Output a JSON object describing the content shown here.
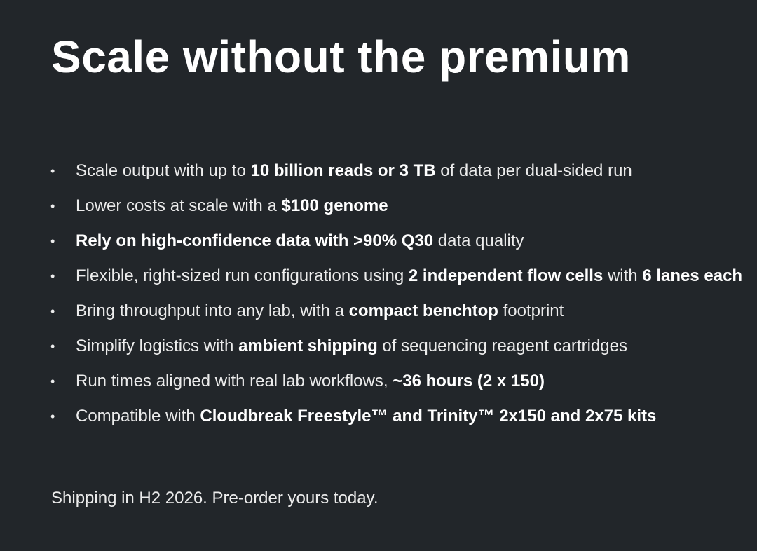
{
  "title": "Scale without the premium",
  "bullets": [
    [
      {
        "t": "Scale output with up to ",
        "b": false
      },
      {
        "t": "10 billion reads or 3 TB",
        "b": true
      },
      {
        "t": " of data per dual-sided run",
        "b": false
      }
    ],
    [
      {
        "t": "Lower costs at scale with a ",
        "b": false
      },
      {
        "t": "$100 genome",
        "b": true
      }
    ],
    [
      {
        "t": "Rely on high-confidence data with >90% Q30",
        "b": true
      },
      {
        "t": " data quality",
        "b": false
      }
    ],
    [
      {
        "t": "Flexible, right-sized run configurations using ",
        "b": false
      },
      {
        "t": "2 independent flow cells",
        "b": true
      },
      {
        "t": " with ",
        "b": false
      },
      {
        "t": "6 lanes each",
        "b": true
      }
    ],
    [
      {
        "t": "Bring throughput into any lab, with a ",
        "b": false
      },
      {
        "t": "compact benchtop",
        "b": true
      },
      {
        "t": " footprint",
        "b": false
      }
    ],
    [
      {
        "t": "Simplify logistics with ",
        "b": false
      },
      {
        "t": "ambient shipping",
        "b": true
      },
      {
        "t": " of sequencing reagent cartridges",
        "b": false
      }
    ],
    [
      {
        "t": "Run times aligned with real lab workflows, ",
        "b": false
      },
      {
        "t": "~36 hours (2 x 150)",
        "b": true
      }
    ],
    [
      {
        "t": "Compatible with ",
        "b": false
      },
      {
        "t": "Cloudbreak Freestyle™ and Trinity™ 2x150 and 2x75 kits",
        "b": true
      }
    ]
  ],
  "footer": "Shipping in H2 2026. Pre-order yours today."
}
